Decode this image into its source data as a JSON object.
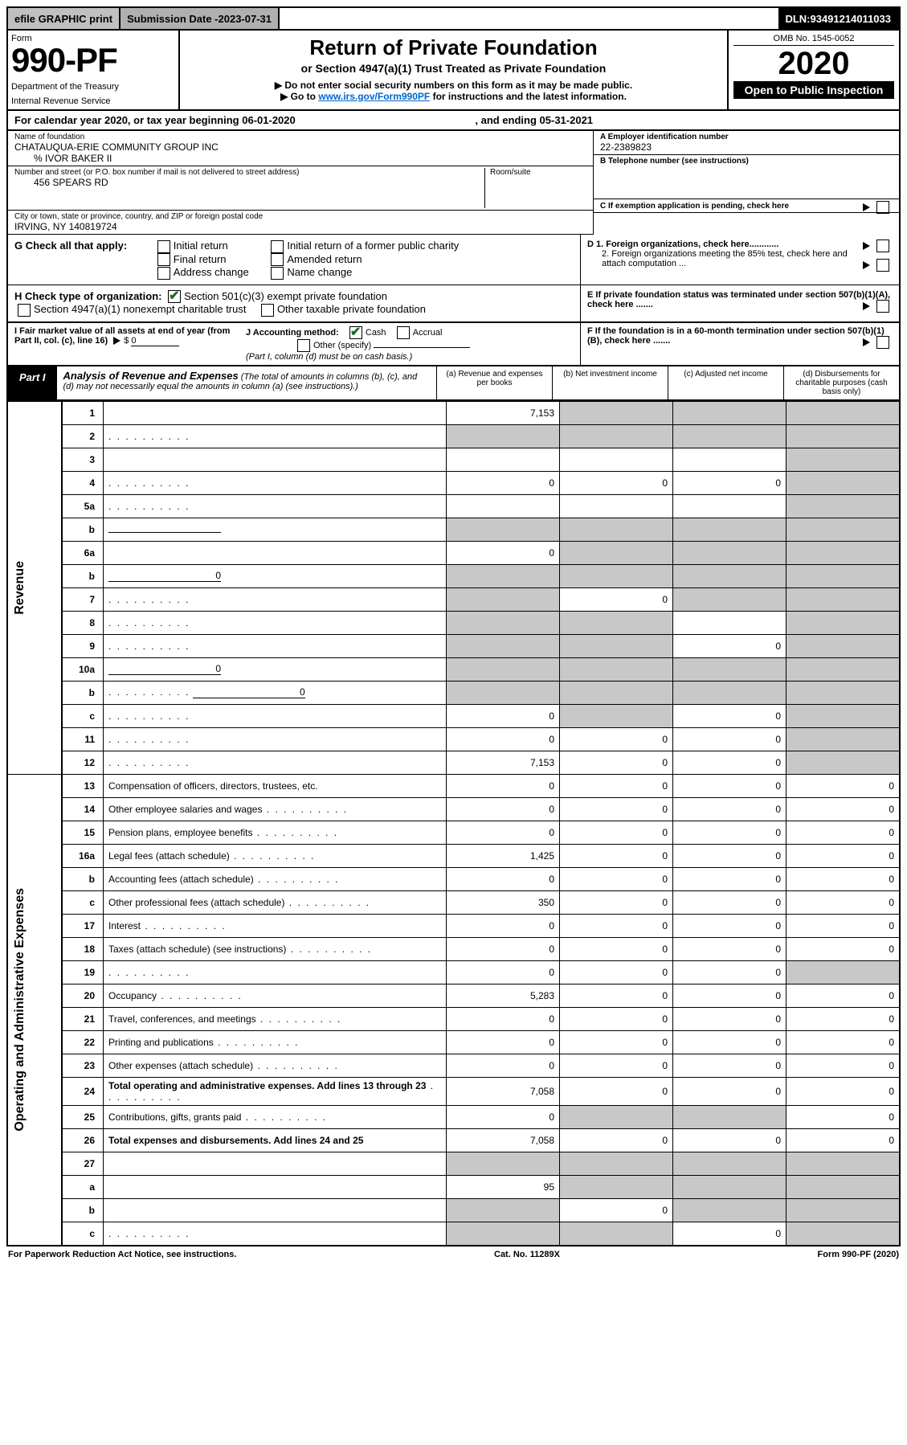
{
  "topbar": {
    "efile": "efile GRAPHIC print",
    "subdate_label": "Submission Date - ",
    "subdate": "2023-07-31",
    "dln_label": "DLN: ",
    "dln": "93491214011033"
  },
  "header": {
    "form_word": "Form",
    "form_no": "990-PF",
    "dept1": "Department of the Treasury",
    "dept2": "Internal Revenue Service",
    "title": "Return of Private Foundation",
    "subtitle": "or Section 4947(a)(1) Trust Treated as Private Foundation",
    "inst1": "▶ Do not enter social security numbers on this form as it may be made public.",
    "inst2_pre": "▶ Go to ",
    "inst2_link": "www.irs.gov/Form990PF",
    "inst2_post": " for instructions and the latest information.",
    "omb": "OMB No. 1545-0052",
    "year": "2020",
    "open": "Open to Public Inspection"
  },
  "yearline": {
    "pre": "For calendar year 2020, or tax year beginning ",
    "begin": "06-01-2020",
    "mid": ", and ending ",
    "end": "05-31-2021"
  },
  "entity": {
    "name_lab": "Name of foundation",
    "name": "CHATAUQUA-ERIE COMMUNITY GROUP INC",
    "care_of": "% IVOR BAKER II",
    "street_lab": "Number and street (or P.O. box number if mail is not delivered to street address)",
    "street": "456 SPEARS RD",
    "room_lab": "Room/suite",
    "city_lab": "City or town, state or province, country, and ZIP or foreign postal code",
    "city": "IRVING, NY  140819724",
    "ein_lab": "A Employer identification number",
    "ein": "22-2389823",
    "tel_lab": "B Telephone number (see instructions)",
    "c_lab": "C If exemption application is pending, check here",
    "d1": "D 1. Foreign organizations, check here............",
    "d2": "2. Foreign organizations meeting the 85% test, check here and attach computation ...",
    "e": "E  If private foundation status was terminated under section 507(b)(1)(A), check here .......",
    "f": "F  If the foundation is in a 60-month termination under section 507(b)(1)(B), check here .......",
    "g_lab": "G Check all that apply:",
    "g_opts": [
      "Initial return",
      "Final return",
      "Address change",
      "Initial return of a former public charity",
      "Amended return",
      "Name change"
    ],
    "h_lab": "H Check type of organization:",
    "h1": "Section 501(c)(3) exempt private foundation",
    "h2": "Section 4947(a)(1) nonexempt charitable trust",
    "h3": "Other taxable private foundation",
    "i_lab": "I Fair market value of all assets at end of year (from Part II, col. (c), line 16)",
    "i_val": "0",
    "j_lab": "J Accounting method:",
    "j_cash": "Cash",
    "j_accr": "Accrual",
    "j_other": "Other (specify)",
    "j_note": "(Part I, column (d) must be on cash basis.)"
  },
  "part1": {
    "label": "Part I",
    "title": "Analysis of Revenue and Expenses",
    "title_note": " (The total of amounts in columns (b), (c), and (d) may not necessarily equal the amounts in column (a) (see instructions).)",
    "col_a": "(a)   Revenue and expenses per books",
    "col_b": "(b)   Net investment income",
    "col_c": "(c)   Adjusted net income",
    "col_d": "(d)   Disbursements for charitable purposes (cash basis only)",
    "side_rev": "Revenue",
    "side_exp": "Operating and Administrative Expenses"
  },
  "rows": [
    {
      "n": "1",
      "d": "",
      "a": "7,153",
      "b": "",
      "c": "",
      "bs": true,
      "cs": true,
      "ds": true
    },
    {
      "n": "2",
      "d": "",
      "a": "",
      "b": "",
      "c": "",
      "as": true,
      "bs": true,
      "cs": true,
      "ds": true,
      "dots": true
    },
    {
      "n": "3",
      "d": "",
      "a": "",
      "b": "",
      "c": "",
      "ds": true
    },
    {
      "n": "4",
      "d": "",
      "a": "0",
      "b": "0",
      "c": "0",
      "ds": true,
      "dots": true
    },
    {
      "n": "5a",
      "d": "",
      "a": "",
      "b": "",
      "c": "",
      "ds": true,
      "dots": true
    },
    {
      "n": "b",
      "d": "",
      "a": "",
      "b": "",
      "c": "",
      "as": true,
      "bs": true,
      "cs": true,
      "ds": true,
      "inline": true
    },
    {
      "n": "6a",
      "d": "",
      "a": "0",
      "b": "",
      "c": "",
      "bs": true,
      "cs": true,
      "ds": true
    },
    {
      "n": "b",
      "d": "",
      "a": "",
      "b": "",
      "c": "",
      "as": true,
      "bs": true,
      "cs": true,
      "ds": true,
      "inline": true,
      "iv": "0"
    },
    {
      "n": "7",
      "d": "",
      "a": "",
      "b": "0",
      "c": "",
      "as": true,
      "cs": true,
      "ds": true,
      "dots": true
    },
    {
      "n": "8",
      "d": "",
      "a": "",
      "b": "",
      "c": "",
      "as": true,
      "bs": true,
      "ds": true,
      "dots": true
    },
    {
      "n": "9",
      "d": "",
      "a": "",
      "b": "",
      "c": "0",
      "as": true,
      "bs": true,
      "ds": true,
      "dots": true
    },
    {
      "n": "10a",
      "d": "",
      "a": "",
      "b": "",
      "c": "",
      "as": true,
      "bs": true,
      "cs": true,
      "ds": true,
      "inline": true,
      "iv": "0"
    },
    {
      "n": "b",
      "d": "",
      "a": "",
      "b": "",
      "c": "",
      "as": true,
      "bs": true,
      "cs": true,
      "ds": true,
      "inline": true,
      "iv": "0",
      "dots": true
    },
    {
      "n": "c",
      "d": "",
      "a": "0",
      "b": "",
      "c": "0",
      "bs": true,
      "ds": true,
      "dots": true
    },
    {
      "n": "11",
      "d": "",
      "a": "0",
      "b": "0",
      "c": "0",
      "ds": true,
      "dots": true
    },
    {
      "n": "12",
      "d": "",
      "a": "7,153",
      "b": "0",
      "c": "0",
      "ds": true,
      "bold": true,
      "dots": true
    },
    {
      "n": "13",
      "d": "Compensation of officers, directors, trustees, etc.",
      "a": "0",
      "b": "0",
      "c": "0",
      "dval": "0"
    },
    {
      "n": "14",
      "d": "Other employee salaries and wages",
      "a": "0",
      "b": "0",
      "c": "0",
      "dval": "0",
      "dots": true
    },
    {
      "n": "15",
      "d": "Pension plans, employee benefits",
      "a": "0",
      "b": "0",
      "c": "0",
      "dval": "0",
      "dots": true
    },
    {
      "n": "16a",
      "d": "Legal fees (attach schedule)",
      "a": "1,425",
      "b": "0",
      "c": "0",
      "dval": "0",
      "dots": true
    },
    {
      "n": "b",
      "d": "Accounting fees (attach schedule)",
      "a": "0",
      "b": "0",
      "c": "0",
      "dval": "0",
      "dots": true
    },
    {
      "n": "c",
      "d": "Other professional fees (attach schedule)",
      "a": "350",
      "b": "0",
      "c": "0",
      "dval": "0",
      "dots": true
    },
    {
      "n": "17",
      "d": "Interest",
      "a": "0",
      "b": "0",
      "c": "0",
      "dval": "0",
      "dots": true
    },
    {
      "n": "18",
      "d": "Taxes (attach schedule) (see instructions)",
      "a": "0",
      "b": "0",
      "c": "0",
      "dval": "0",
      "dots": true
    },
    {
      "n": "19",
      "d": "",
      "a": "0",
      "b": "0",
      "c": "0",
      "ds": true,
      "dots": true
    },
    {
      "n": "20",
      "d": "Occupancy",
      "a": "5,283",
      "b": "0",
      "c": "0",
      "dval": "0",
      "dots": true
    },
    {
      "n": "21",
      "d": "Travel, conferences, and meetings",
      "a": "0",
      "b": "0",
      "c": "0",
      "dval": "0",
      "dots": true
    },
    {
      "n": "22",
      "d": "Printing and publications",
      "a": "0",
      "b": "0",
      "c": "0",
      "dval": "0",
      "dots": true
    },
    {
      "n": "23",
      "d": "Other expenses (attach schedule)",
      "a": "0",
      "b": "0",
      "c": "0",
      "dval": "0",
      "dots": true
    },
    {
      "n": "24",
      "d": "Total operating and administrative expenses. Add lines 13 through 23",
      "a": "7,058",
      "b": "0",
      "c": "0",
      "dval": "0",
      "bold": true,
      "dots": true
    },
    {
      "n": "25",
      "d": "Contributions, gifts, grants paid",
      "a": "0",
      "b": "",
      "c": "",
      "dval": "0",
      "bs": true,
      "cs": true,
      "dots": true
    },
    {
      "n": "26",
      "d": "Total expenses and disbursements. Add lines 24 and 25",
      "a": "7,058",
      "b": "0",
      "c": "0",
      "dval": "0",
      "bold": true
    },
    {
      "n": "27",
      "d": "",
      "a": "",
      "b": "",
      "c": "",
      "as": true,
      "bs": true,
      "cs": true,
      "ds": true
    },
    {
      "n": "a",
      "d": "",
      "a": "95",
      "b": "",
      "c": "",
      "bs": true,
      "cs": true,
      "ds": true,
      "bold": true
    },
    {
      "n": "b",
      "d": "",
      "a": "",
      "b": "0",
      "c": "",
      "as": true,
      "cs": true,
      "ds": true,
      "bold": true
    },
    {
      "n": "c",
      "d": "",
      "a": "",
      "b": "",
      "c": "0",
      "as": true,
      "bs": true,
      "ds": true,
      "bold": true,
      "dots": true
    }
  ],
  "footer": {
    "left": "For Paperwork Reduction Act Notice, see instructions.",
    "mid": "Cat. No. 11289X",
    "right": "Form 990-PF (2020)"
  }
}
